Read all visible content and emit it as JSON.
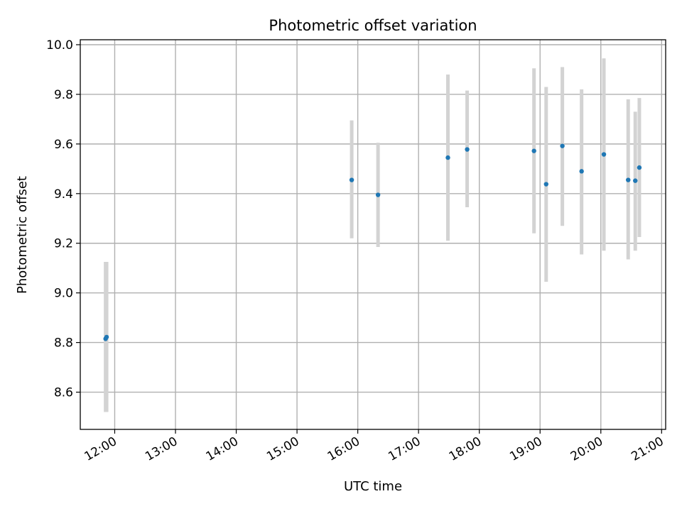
{
  "chart_data": {
    "type": "scatter",
    "title": "Photometric offset variation",
    "xlabel": "UTC time",
    "ylabel": "Photometric offset",
    "x_tick_labels": [
      "12:00",
      "13:00",
      "14:00",
      "15:00",
      "16:00",
      "17:00",
      "18:00",
      "19:00",
      "20:00",
      "21:00"
    ],
    "y_tick_labels": [
      "8.6",
      "8.8",
      "9.0",
      "9.2",
      "9.4",
      "9.6",
      "9.8",
      "10.0"
    ],
    "xlim": [
      "11:26",
      "21:04"
    ],
    "ylim": [
      8.45,
      10.02
    ],
    "grid": true,
    "marker_color": "#1f77b4",
    "errorbar_color": "#d3d3d3",
    "points": [
      {
        "time": "11:51",
        "y": 8.815,
        "y_low": 8.52,
        "y_high": 9.125
      },
      {
        "time": "11:52",
        "y": 8.822,
        "y_low": 8.52,
        "y_high": 9.125
      },
      {
        "time": "15:54",
        "y": 9.455,
        "y_low": 9.22,
        "y_high": 9.695
      },
      {
        "time": "16:20",
        "y": 9.395,
        "y_low": 9.185,
        "y_high": 9.605
      },
      {
        "time": "17:29",
        "y": 9.545,
        "y_low": 9.21,
        "y_high": 9.88
      },
      {
        "time": "17:48",
        "y": 9.578,
        "y_low": 9.345,
        "y_high": 9.815
      },
      {
        "time": "18:54",
        "y": 9.572,
        "y_low": 9.24,
        "y_high": 9.905
      },
      {
        "time": "19:06",
        "y": 9.438,
        "y_low": 9.045,
        "y_high": 9.83
      },
      {
        "time": "19:22",
        "y": 9.592,
        "y_low": 9.27,
        "y_high": 9.91
      },
      {
        "time": "19:41",
        "y": 9.49,
        "y_low": 9.155,
        "y_high": 9.82
      },
      {
        "time": "20:03",
        "y": 9.558,
        "y_low": 9.17,
        "y_high": 9.945
      },
      {
        "time": "20:27",
        "y": 9.455,
        "y_low": 9.135,
        "y_high": 9.78
      },
      {
        "time": "20:34",
        "y": 9.452,
        "y_low": 9.17,
        "y_high": 9.73
      },
      {
        "time": "20:38",
        "y": 9.505,
        "y_low": 9.225,
        "y_high": 9.785
      }
    ]
  }
}
